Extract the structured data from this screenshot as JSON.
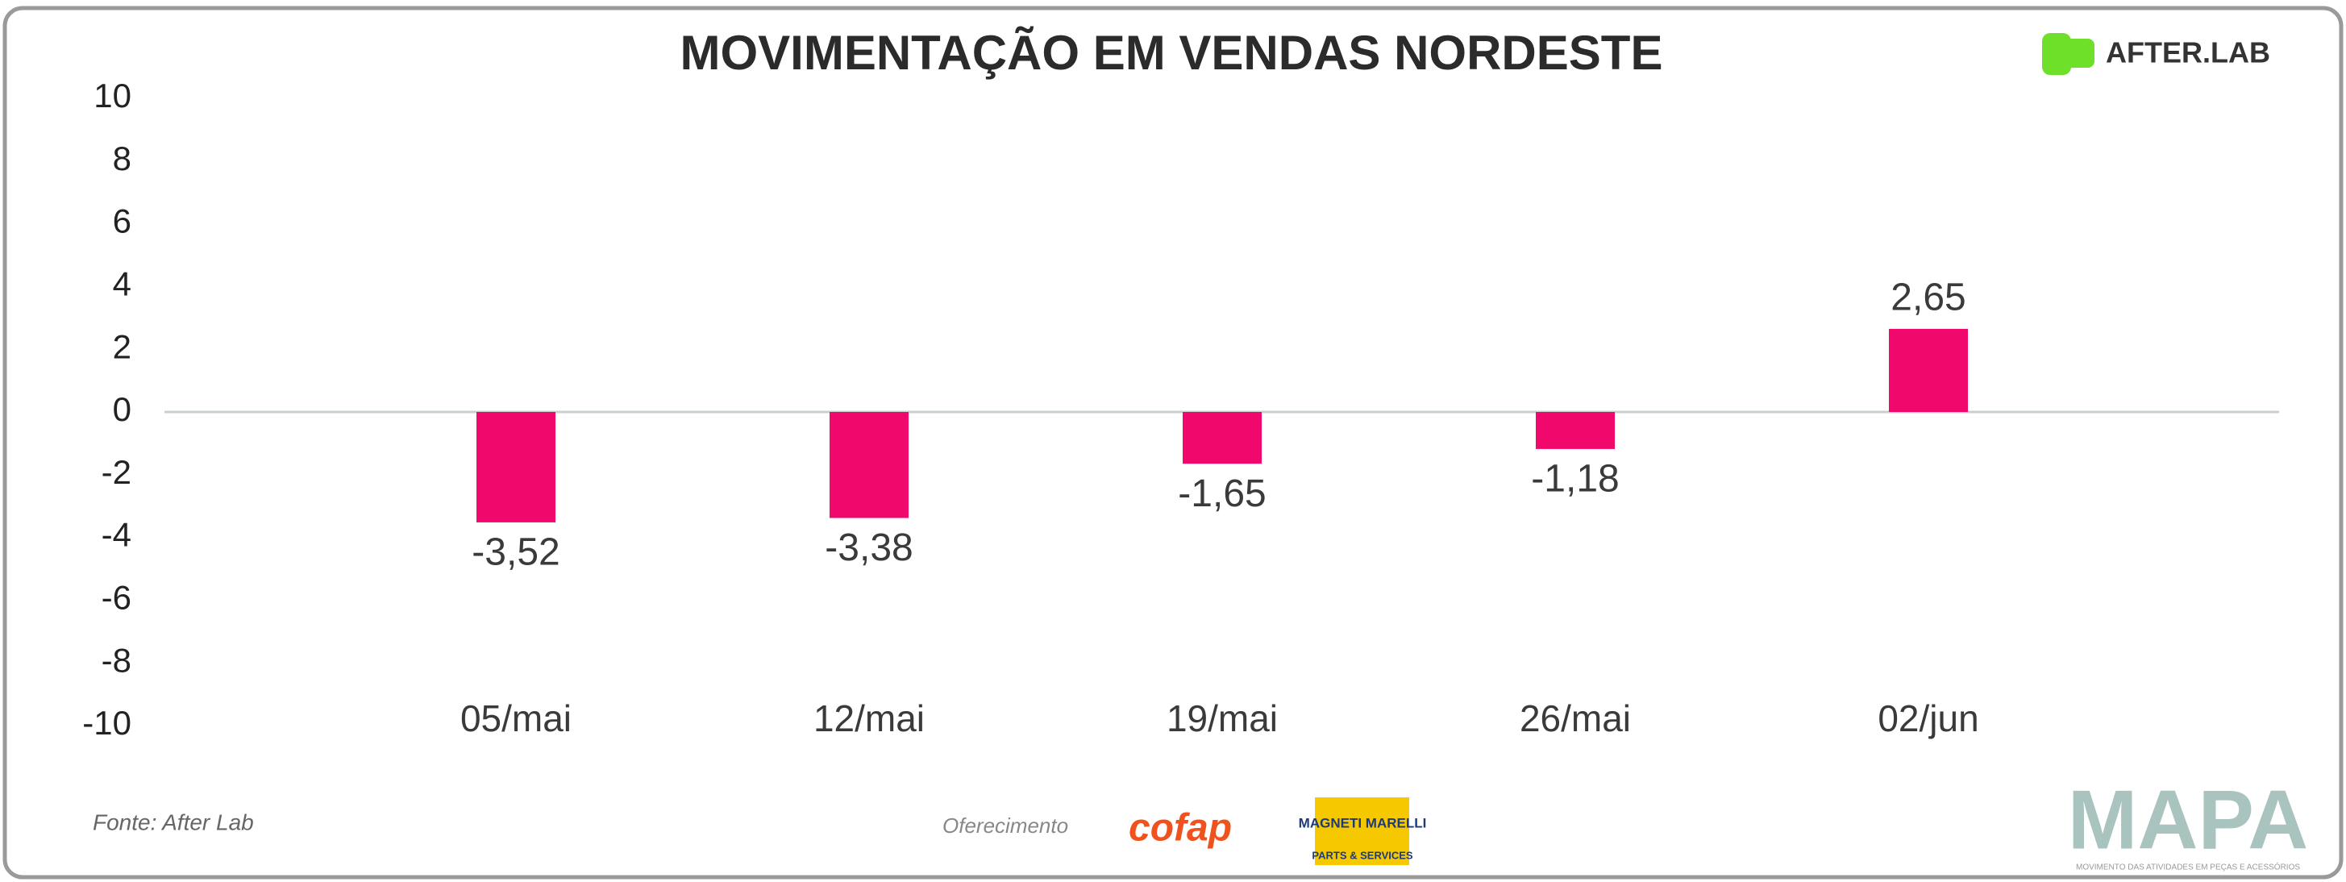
{
  "chart_data": {
    "type": "bar",
    "title": "MOVIMENTAÇÃO EM VENDAS NORDESTE",
    "categories": [
      "05/mai",
      "12/mai",
      "19/mai",
      "26/mai",
      "02/jun"
    ],
    "values": [
      -3.52,
      -3.38,
      -1.65,
      -1.18,
      2.65
    ],
    "value_labels": [
      "-3,52",
      "-3,38",
      "-1,65",
      "-1,18",
      "2,65"
    ],
    "color": "#f0086c",
    "ylim": [
      -10,
      10
    ],
    "yticks": [
      -10,
      -8,
      -6,
      -4,
      -2,
      0,
      2,
      4,
      6,
      8,
      10
    ],
    "grid": false
  },
  "footer": {
    "source": "Fonte: After Lab",
    "sponsor_label": "Oferecimento",
    "sponsors": [
      "cofap",
      "MAGNETI MARELLI",
      "PARTS & SERVICES"
    ],
    "brand": "AFTER.LAB",
    "logo": "MAPA",
    "logo_subtitle": "MOVIMENTO DAS ATIVIDADES EM PEÇAS E ACESSÓRIOS"
  }
}
